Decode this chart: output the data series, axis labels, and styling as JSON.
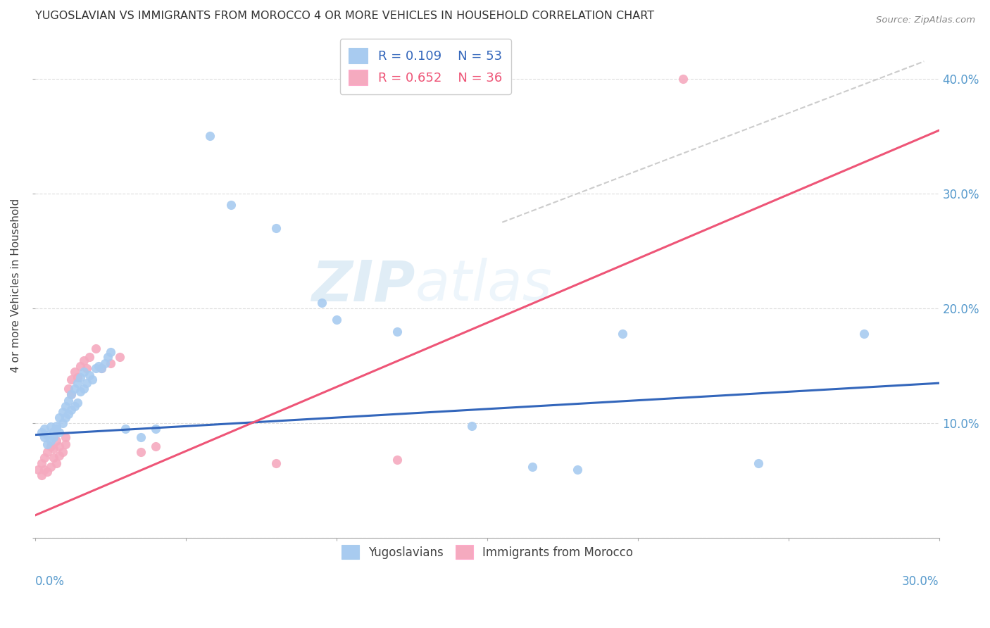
{
  "title": "YUGOSLAVIAN VS IMMIGRANTS FROM MOROCCO 4 OR MORE VEHICLES IN HOUSEHOLD CORRELATION CHART",
  "source": "Source: ZipAtlas.com",
  "ylabel": "4 or more Vehicles in Household",
  "watermark": "ZIPatlas",
  "legend_r1": "R = 0.109",
  "legend_n1": "N = 53",
  "legend_r2": "R = 0.652",
  "legend_n2": "N = 36",
  "blue_color": "#A8CBF0",
  "pink_color": "#F5AABF",
  "blue_line_color": "#3366BB",
  "pink_line_color": "#EE5577",
  "gray_line_color": "#CCCCCC",
  "xlim": [
    0.0,
    0.3
  ],
  "ylim": [
    0.0,
    0.44
  ],
  "yug_line_x0": 0.0,
  "yug_line_y0": 0.09,
  "yug_line_x1": 0.3,
  "yug_line_y1": 0.135,
  "mor_line_x0": 0.0,
  "mor_line_y0": 0.02,
  "mor_line_x1": 0.3,
  "mor_line_y1": 0.355,
  "ref_line_x0": 0.155,
  "ref_line_y0": 0.275,
  "ref_line_x1": 0.295,
  "ref_line_y1": 0.415,
  "yugoslavian_x": [
    0.002,
    0.003,
    0.003,
    0.004,
    0.004,
    0.005,
    0.005,
    0.006,
    0.006,
    0.007,
    0.007,
    0.008,
    0.008,
    0.009,
    0.009,
    0.01,
    0.01,
    0.011,
    0.011,
    0.012,
    0.012,
    0.013,
    0.013,
    0.014,
    0.014,
    0.015,
    0.015,
    0.016,
    0.016,
    0.017,
    0.018,
    0.019,
    0.02,
    0.021,
    0.022,
    0.023,
    0.024,
    0.025,
    0.03,
    0.035,
    0.04,
    0.058,
    0.065,
    0.08,
    0.095,
    0.1,
    0.12,
    0.145,
    0.165,
    0.18,
    0.195,
    0.24,
    0.275
  ],
  "yugoslavian_y": [
    0.092,
    0.088,
    0.095,
    0.082,
    0.09,
    0.085,
    0.097,
    0.093,
    0.088,
    0.095,
    0.098,
    0.105,
    0.092,
    0.11,
    0.1,
    0.115,
    0.105,
    0.12,
    0.108,
    0.125,
    0.112,
    0.13,
    0.115,
    0.135,
    0.118,
    0.14,
    0.128,
    0.145,
    0.13,
    0.135,
    0.142,
    0.138,
    0.148,
    0.15,
    0.148,
    0.152,
    0.158,
    0.162,
    0.095,
    0.088,
    0.095,
    0.35,
    0.29,
    0.27,
    0.205,
    0.19,
    0.18,
    0.098,
    0.062,
    0.06,
    0.178,
    0.065,
    0.178
  ],
  "morocco_x": [
    0.001,
    0.002,
    0.002,
    0.003,
    0.003,
    0.004,
    0.004,
    0.005,
    0.005,
    0.006,
    0.006,
    0.007,
    0.007,
    0.008,
    0.008,
    0.009,
    0.01,
    0.01,
    0.011,
    0.012,
    0.012,
    0.013,
    0.014,
    0.015,
    0.016,
    0.017,
    0.018,
    0.02,
    0.022,
    0.025,
    0.028,
    0.035,
    0.04,
    0.08,
    0.12,
    0.215
  ],
  "morocco_y": [
    0.06,
    0.055,
    0.065,
    0.06,
    0.07,
    0.058,
    0.075,
    0.062,
    0.08,
    0.07,
    0.078,
    0.065,
    0.085,
    0.072,
    0.08,
    0.075,
    0.088,
    0.082,
    0.13,
    0.125,
    0.138,
    0.145,
    0.14,
    0.15,
    0.155,
    0.148,
    0.158,
    0.165,
    0.148,
    0.152,
    0.158,
    0.075,
    0.08,
    0.065,
    0.068,
    0.4
  ]
}
